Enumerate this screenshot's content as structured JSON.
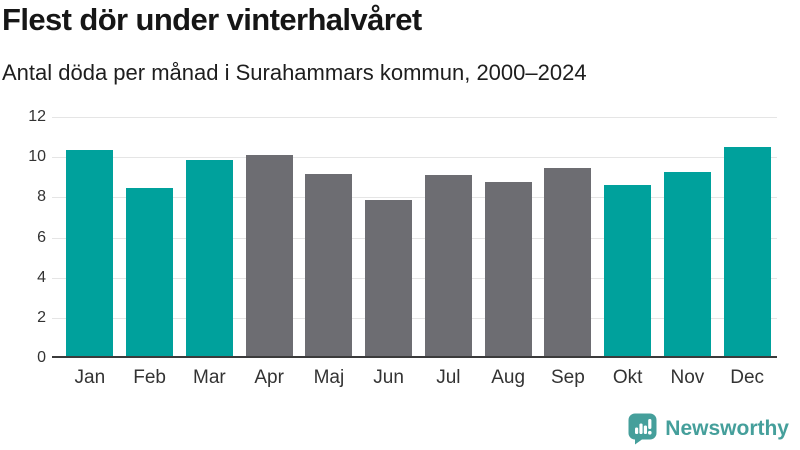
{
  "header": {
    "title": "Flest dör under vinterhalvåret",
    "subtitle": "Antal döda per månad i Surahammars kommun, 2000–2024"
  },
  "chart_data": {
    "type": "bar",
    "title": "Flest dör under vinterhalvåret",
    "subtitle": "Antal döda per månad i Surahammars kommun, 2000–2024",
    "categories": [
      "Jan",
      "Feb",
      "Mar",
      "Apr",
      "Maj",
      "Jun",
      "Jul",
      "Aug",
      "Sep",
      "Okt",
      "Nov",
      "Dec"
    ],
    "values": [
      10.35,
      8.45,
      9.85,
      10.1,
      9.15,
      7.85,
      9.1,
      8.75,
      9.45,
      8.6,
      9.25,
      10.5
    ],
    "bar_colors": [
      "#00a19c",
      "#00a19c",
      "#00a19c",
      "#6d6d72",
      "#6d6d72",
      "#6d6d72",
      "#6d6d72",
      "#6d6d72",
      "#6d6d72",
      "#00a19c",
      "#00a19c",
      "#00a19c"
    ],
    "highlighted_categories": [
      "Jan",
      "Feb",
      "Mar",
      "Okt",
      "Nov",
      "Dec"
    ],
    "xlabel": "",
    "ylabel": "",
    "ylim": [
      0,
      12
    ],
    "yticks": [
      0,
      2,
      4,
      6,
      8,
      10,
      12
    ],
    "grid": true,
    "legend": false
  },
  "colors": {
    "highlight": "#00a19c",
    "neutral": "#6d6d72",
    "gridline": "#e5e5e5",
    "axis": "#3b3b3b",
    "tick_label": "#333333",
    "title": "#161616",
    "subtitle": "#1e1e1e",
    "background": "#ffffff",
    "brand": "#459f9b"
  },
  "footer": {
    "brand": "Newsworthy"
  }
}
